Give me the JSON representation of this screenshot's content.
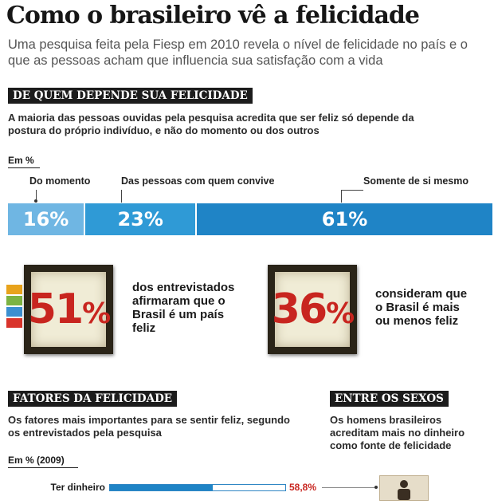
{
  "header": {
    "title": "Como o brasileiro vê a felicidade",
    "subtitle": "Uma pesquisa feita pela Fiesp em 2010 revela o nível de felicidade no país e o que as pessoas acham que influencia sua satisfação com a vida"
  },
  "section1": {
    "tag": "DE QUEM DEPENDE SUA FELICIDADE",
    "description": "A maioria das pessoas ouvidas pela pesquisa acredita que ser feliz só depende da postura do próprio indivíduo, e não do momento ou dos outros",
    "unit": "Em %"
  },
  "chart_data": [
    {
      "type": "bar",
      "stacked": true,
      "orientation": "horizontal",
      "categories": [
        "Do momento",
        "Das pessoas com quem convive",
        "Somente de si mesmo"
      ],
      "values": [
        16,
        23,
        61
      ],
      "value_labels": [
        "16%",
        "23%",
        "61%"
      ],
      "colors": [
        "#6fb6e3",
        "#2f9ad6",
        "#1f84c6"
      ],
      "unit": "Em %"
    },
    {
      "type": "bar",
      "orientation": "horizontal",
      "categories": [
        "Ter dinheiro"
      ],
      "values": [
        58.8
      ],
      "value_labels": [
        "58,8%"
      ],
      "xlim": [
        0,
        100
      ],
      "unit": "Em % (2009)"
    }
  ],
  "stats": {
    "happy": {
      "value": "51",
      "symbol": "%",
      "text": "dos entrevistados afirmaram que o Brasil é um país feliz"
    },
    "moderate": {
      "value": "36",
      "symbol": "%",
      "text": "consideram que o Brasil é mais ou menos feliz"
    },
    "swatch_colors": [
      "#e8a31c",
      "#7cb342",
      "#3b8fd0",
      "#d9342b"
    ]
  },
  "section2": {
    "tag": "FATORES DA FELICIDADE",
    "description": "Os fatores mais importantes para se sentir feliz, segundo os entrevistados pela pesquisa",
    "unit": "Em % (2009)"
  },
  "section3": {
    "tag": "ENTRE OS SEXOS",
    "description": "Os homens brasileiros acreditam mais no dinheiro como fonte de felicidade",
    "icon": "man-icon"
  }
}
